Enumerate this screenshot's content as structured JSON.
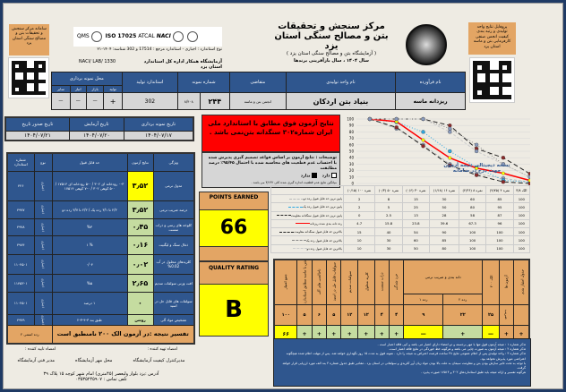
{
  "header": {
    "title1": "مرکز سنجش و تحقیقات",
    "title2": "بتن و مصالح سنگی استان یزد",
    "title3": "( آزمایشگاه بتن و مصالح سنگی استان یزد )",
    "year_motto": "سال ۱۴۰۴ ، سال بازآفرینی برندها",
    "standard_line": "نوع استاندارد : اجباری  -  استاندارد مرجع : 17514  و  302   شناسه: ۱۴۰۴-۲۱",
    "lab_line": "آزمایشگاه همکار اداره کل استاندارد استان یزد",
    "naci": "NACI/ LAB/ 1330",
    "left_badge": "سامانه مرکز سنجش و تحقیقات بتن و مصالح سنگی استان یزد",
    "right_badge": "پروفایل نتایج واحد تولیدی و رتبه بندی کیفیت انجمن صنفی کارفرمایی بتن و ماسه استان یزد",
    "logos": [
      "QMS",
      "ISO 17025",
      "ATCAL",
      "NACI"
    ]
  },
  "info_table": {
    "headers": [
      "نام فرآورده",
      "نام واحد تولیدی",
      "متقاضی",
      "شماره نمونه",
      "استاندارد تولید",
      "محل نمونه برداری"
    ],
    "sampling_sub": [
      "تولید",
      "بازار",
      "انبار",
      "سایر"
    ],
    "values": {
      "product": "ریزدانه ماسه",
      "producer": "بنیاد بتن اردکان",
      "applicant": "انجمن بتن و ماسه",
      "sample_no": "۲۴۴",
      "sample_code": "۸/۴۰۸",
      "standard": "302",
      "sampling": [
        "+",
        "—",
        "—",
        "—"
      ]
    }
  },
  "dates": {
    "headers": [
      "تاریخ نمونه برداری",
      "تاریخ آزمایش",
      "تاریخ صدور تاریخ"
    ],
    "values": [
      "۱۴۰۴/۰۷/۱۷",
      "۱۴۰۴/۰۷/۲۰",
      "۱۴۰۴/۰۷/۲۱"
    ]
  },
  "props": {
    "headers": [
      "ویژگی",
      "نتایج آزمون",
      "حد قابل قبول",
      "نوع",
      "شماره استاندارد"
    ],
    "rows": [
      {
        "name": "مدول نرمی",
        "result": "۳٫۵۲",
        "limit": "۰-۳ رودخانه ای ۳۰۲ / ۰-۵ رودخانه ای ۱۷۵۱۴ / ۰-۵ کوهی ۳۰۲ / ۰-۷ کوهی ۱۷۵۱۴",
        "type": "اجباری",
        "std": "۴۴۶"
      },
      {
        "name": "درصد ضریب نرمی",
        "result": "۳٫۵۲",
        "limit": "۲/۳ تا ۳/۱ رده یک / ۲/۳ تا ۳/۷ رده دو",
        "type": "اجباری",
        "std": "۴۹۷۷"
      },
      {
        "name": "کلوخه های رسی و ذرات سست",
        "result": "۰٫۴۵",
        "limit": "%۳",
        "type": "اجباری",
        "std": "۴۹۷۸"
      },
      {
        "name": "ذغال سنگ و لیگنیت",
        "result": "۰٫۱۶",
        "limit": "% ۱",
        "type": "اجباری",
        "std": "۴۹۸۴"
      },
      {
        "name": "کلریدهای محلول در آب 0.02%",
        "result": "۰٫۰۲",
        "limit": "۰/۰۴",
        "type": "اجباری",
        "std": "۱۱۰۴۵۰۱"
      },
      {
        "name": "افت وزنی سولفات سدیم",
        "result": "۲٫۶۵",
        "limit": "%۵",
        "type": "اجباری",
        "std": "۱۱۴۵۳۰۱"
      },
      {
        "name": "سولفات های قابل حل در اسید",
        "result": "۰",
        "limit": "۱ درصد",
        "type": "اجباری",
        "std": "۱۱۰۴۵۰۱"
      },
      {
        "name": "تشخیص مواد آلی",
        "result": "روشن",
        "limit": "طبق بند ۳-۴-۳-۲",
        "type": "اختیاری",
        "std": "۴۹۷۹"
      }
    ],
    "summary": "تفسیر نتیجه :در آزمون الک ۲۰۰ نامنطبق است",
    "grade": "رده اسمی ۲"
  },
  "verdict": {
    "text": "نتایج آزمون فوق مطابق با استاندارد ملی ایران شماره۳۰۲ سنگدانه بتن‌نمی باشد .",
    "color": "#ff0000"
  },
  "notes_box": {
    "text": "توضیحات : نتایج آزمون بر اساس قواعد تصمیم گیری پذیرش شده با احتساب عدم قطعیت های محاسبه شده با احتمال ۹۵/۴۵٪ درصد مطابقت",
    "has": "دارد",
    "hasnot": "ندارد",
    "foot": "میانگین نتایج عدم قطعیت اندازه گیری شده کلی ۳/۱۴۲ می باشد ."
  },
  "score": {
    "points_label": "POINTS EARNED",
    "points": "66",
    "rating_label": "QUALITY RATING",
    "rating": "B"
  },
  "chart_data": {
    "type": "line",
    "title": "نسخه دیجیتالی نتیجه آزمون جهت درج در سامانه",
    "categories": [
      "نمره ۱۰۰ (۰/۱۵)",
      "نمره ۵۰ (۰/۳)",
      "نمره ۳۰ (۰/۶)",
      "نمره ۱۶ (۱/۱۸)",
      "نمره ۸ (۲/۳۶)",
      "نمره ۴ (۴/۷۵)",
      "الک ۳/۸"
    ],
    "ylim": [
      0,
      100
    ],
    "yticks": [
      0,
      10,
      20,
      30,
      40,
      50,
      60,
      70,
      80,
      90,
      100
    ],
    "series": [
      {
        "name": "پایین ترین حد قابل قبول رده دو",
        "values": [
          2,
          8,
          15,
          30,
          60,
          85,
          100
        ],
        "color": "#bbbbbb",
        "dash": "3,2"
      },
      {
        "name": "پایین ترین حد قابل قبول رده یک",
        "values": [
          2,
          5,
          25,
          50,
          80,
          95,
          100
        ],
        "color": "#2ea8e0",
        "dash": "1,2"
      },
      {
        "name": "پایین ترین حد قابل قبول سنگدانه مقاومت",
        "values": [
          0,
          2.5,
          13,
          28,
          58,
          87,
          100
        ],
        "color": "#222222",
        "dash": "5,3"
      },
      {
        "name": "رده دانه بندی شده ریزدانه",
        "values": [
          4.7,
          15.8,
          23.8,
          39.6,
          67.3,
          96,
          100
        ],
        "color": "#ff0000",
        "dash": ""
      },
      {
        "name": "بالاترین حد قابل قبول سنگدانه مقاومت",
        "values": [
          15,
          40,
          54,
          90,
          100,
          100,
          100
        ],
        "color": "#222222",
        "dash": "5,3"
      },
      {
        "name": "بالاترین حد قابل قبول رده یک",
        "values": [
          10,
          30,
          60,
          85,
          100,
          100,
          100
        ],
        "color": "#888888",
        "dash": "1,2"
      },
      {
        "name": "بالاترین حد قابل قبول رده دو",
        "values": [
          10,
          30,
          50,
          80,
          100,
          100,
          100
        ],
        "color": "#cccccc",
        "dash": "3,2"
      }
    ]
  },
  "score_table": {
    "headers": [
      "جدول امتیاز بندی",
      "آزمون ها",
      "الک ۲۰۰",
      "دانه بندی و ضریب نرمی",
      "خرد شدگی",
      "ذرات سست",
      "کلرید محلول",
      "سولفات سدیم",
      "سولفات قابل حل در اسید",
      "ناخالصی های آلی",
      "شن یا ماسه مطابق استاندارد",
      "جمع امتیاز"
    ],
    "sub": [
      "رده ۲",
      "رده ۱"
    ],
    "max_label": "ضریب",
    "max": [
      "۲۵",
      "۲۲",
      "۹",
      "۴",
      "۴",
      "۱۲",
      "۱۲",
      "۵",
      "۶",
      "۵",
      "۱۰۰"
    ],
    "earned": [
      "+",
      "+",
      "—",
      "+",
      "—",
      "+",
      "+",
      "+",
      "+",
      "+",
      "+",
      "+",
      "۶۶"
    ]
  },
  "remarks": [
    "تذکر شماره ۱ : نتیجه آزمون فوق تنها با مهر برجسته و دو امضاء دارای اعتبار می باشد و کپی فاقد اعتبار است .",
    "تذکر شماره ۲ : نتیجه آزمون به صورت چاپی می باشد و هرگونه خط خوردگی در نتایج فاقد اعتبار است.",
    "تذکر شماره ۳ : واحد تولیدی پس از اعلام عمومی نتایج ۴۸ ساعت فرصت اعتراض به نتیجه را دارد . نمونه فوق به مدت ۱۵ روز نگهداری خواهد شد. پس از مهلت اعلام شده هیچگونه اعتراضی مورد پذیرش نخواهد بود.",
    "با توجه به تحت تاثیر سازش بودن بتن و مقاومت سیمان به علت بالا بودن مواد زیان آور کلریدی و سولفاتی در استان یزد ، مقادیر طبق جدول شماره ۳ بند الف مورد ارزیابی قرار خواهد گرفت.",
    "هرگونه تفسیر و ارائه نتیجه باید طبق استانداردهای ۳۰۲ و ۱۷۵۱۴ صورت پذیرد ."
  ],
  "signatures": {
    "prepared": "امضاء تهیه کننده :",
    "approved": "امضاء تایید کننده :",
    "names": [
      "مدیرکنترل کیفیت آزمایشگاه",
      "محل مهر آزمایشگاه",
      "مدیر فنی آزمایشگاه"
    ],
    "address": "آدرس :یزد بلوار ولیعصر (۴۵متری) امام شهر کوچه ۱۵ پلاک ۳۹",
    "phone": "تلفن تماس : ۰۳۵۳۵۲۴۵۹۰۷"
  }
}
